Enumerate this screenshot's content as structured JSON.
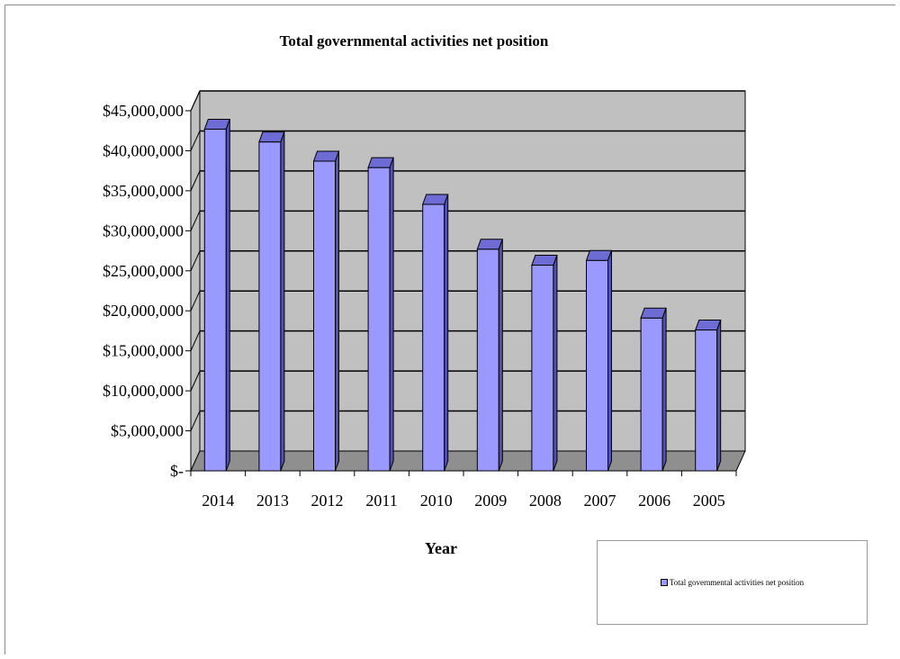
{
  "chart_data": {
    "type": "bar",
    "title": "Total governmental activities net position",
    "xlabel": "Year",
    "ylabel": "",
    "categories": [
      "2014",
      "2013",
      "2012",
      "2011",
      "2010",
      "2009",
      "2008",
      "2007",
      "2006",
      "2005"
    ],
    "series": [
      {
        "name": "Total governmental activities net position",
        "values": [
          42700000,
          41100000,
          38700000,
          37900000,
          33300000,
          27700000,
          25700000,
          26300000,
          19100000,
          17600000
        ]
      }
    ],
    "ylim": [
      0,
      45000000
    ],
    "ytick_values": [
      0,
      5000000,
      10000000,
      15000000,
      20000000,
      25000000,
      30000000,
      35000000,
      40000000,
      45000000
    ],
    "ytick_labels": [
      "$-",
      "$5,000,000",
      "$10,000,000",
      "$15,000,000",
      "$20,000,000",
      "$25,000,000",
      "$30,000,000",
      "$35,000,000",
      "$40,000,000",
      "$45,000,000"
    ],
    "grid": true,
    "three_d": true,
    "legend_position": "bottom-right",
    "colors": {
      "bar_front": "#9999ff",
      "bar_top": "#6c6cd4",
      "bar_side": "#5252b0",
      "wall": "#c0c0c0",
      "floor": "#8f8f8f",
      "gridline": "#000000"
    }
  }
}
